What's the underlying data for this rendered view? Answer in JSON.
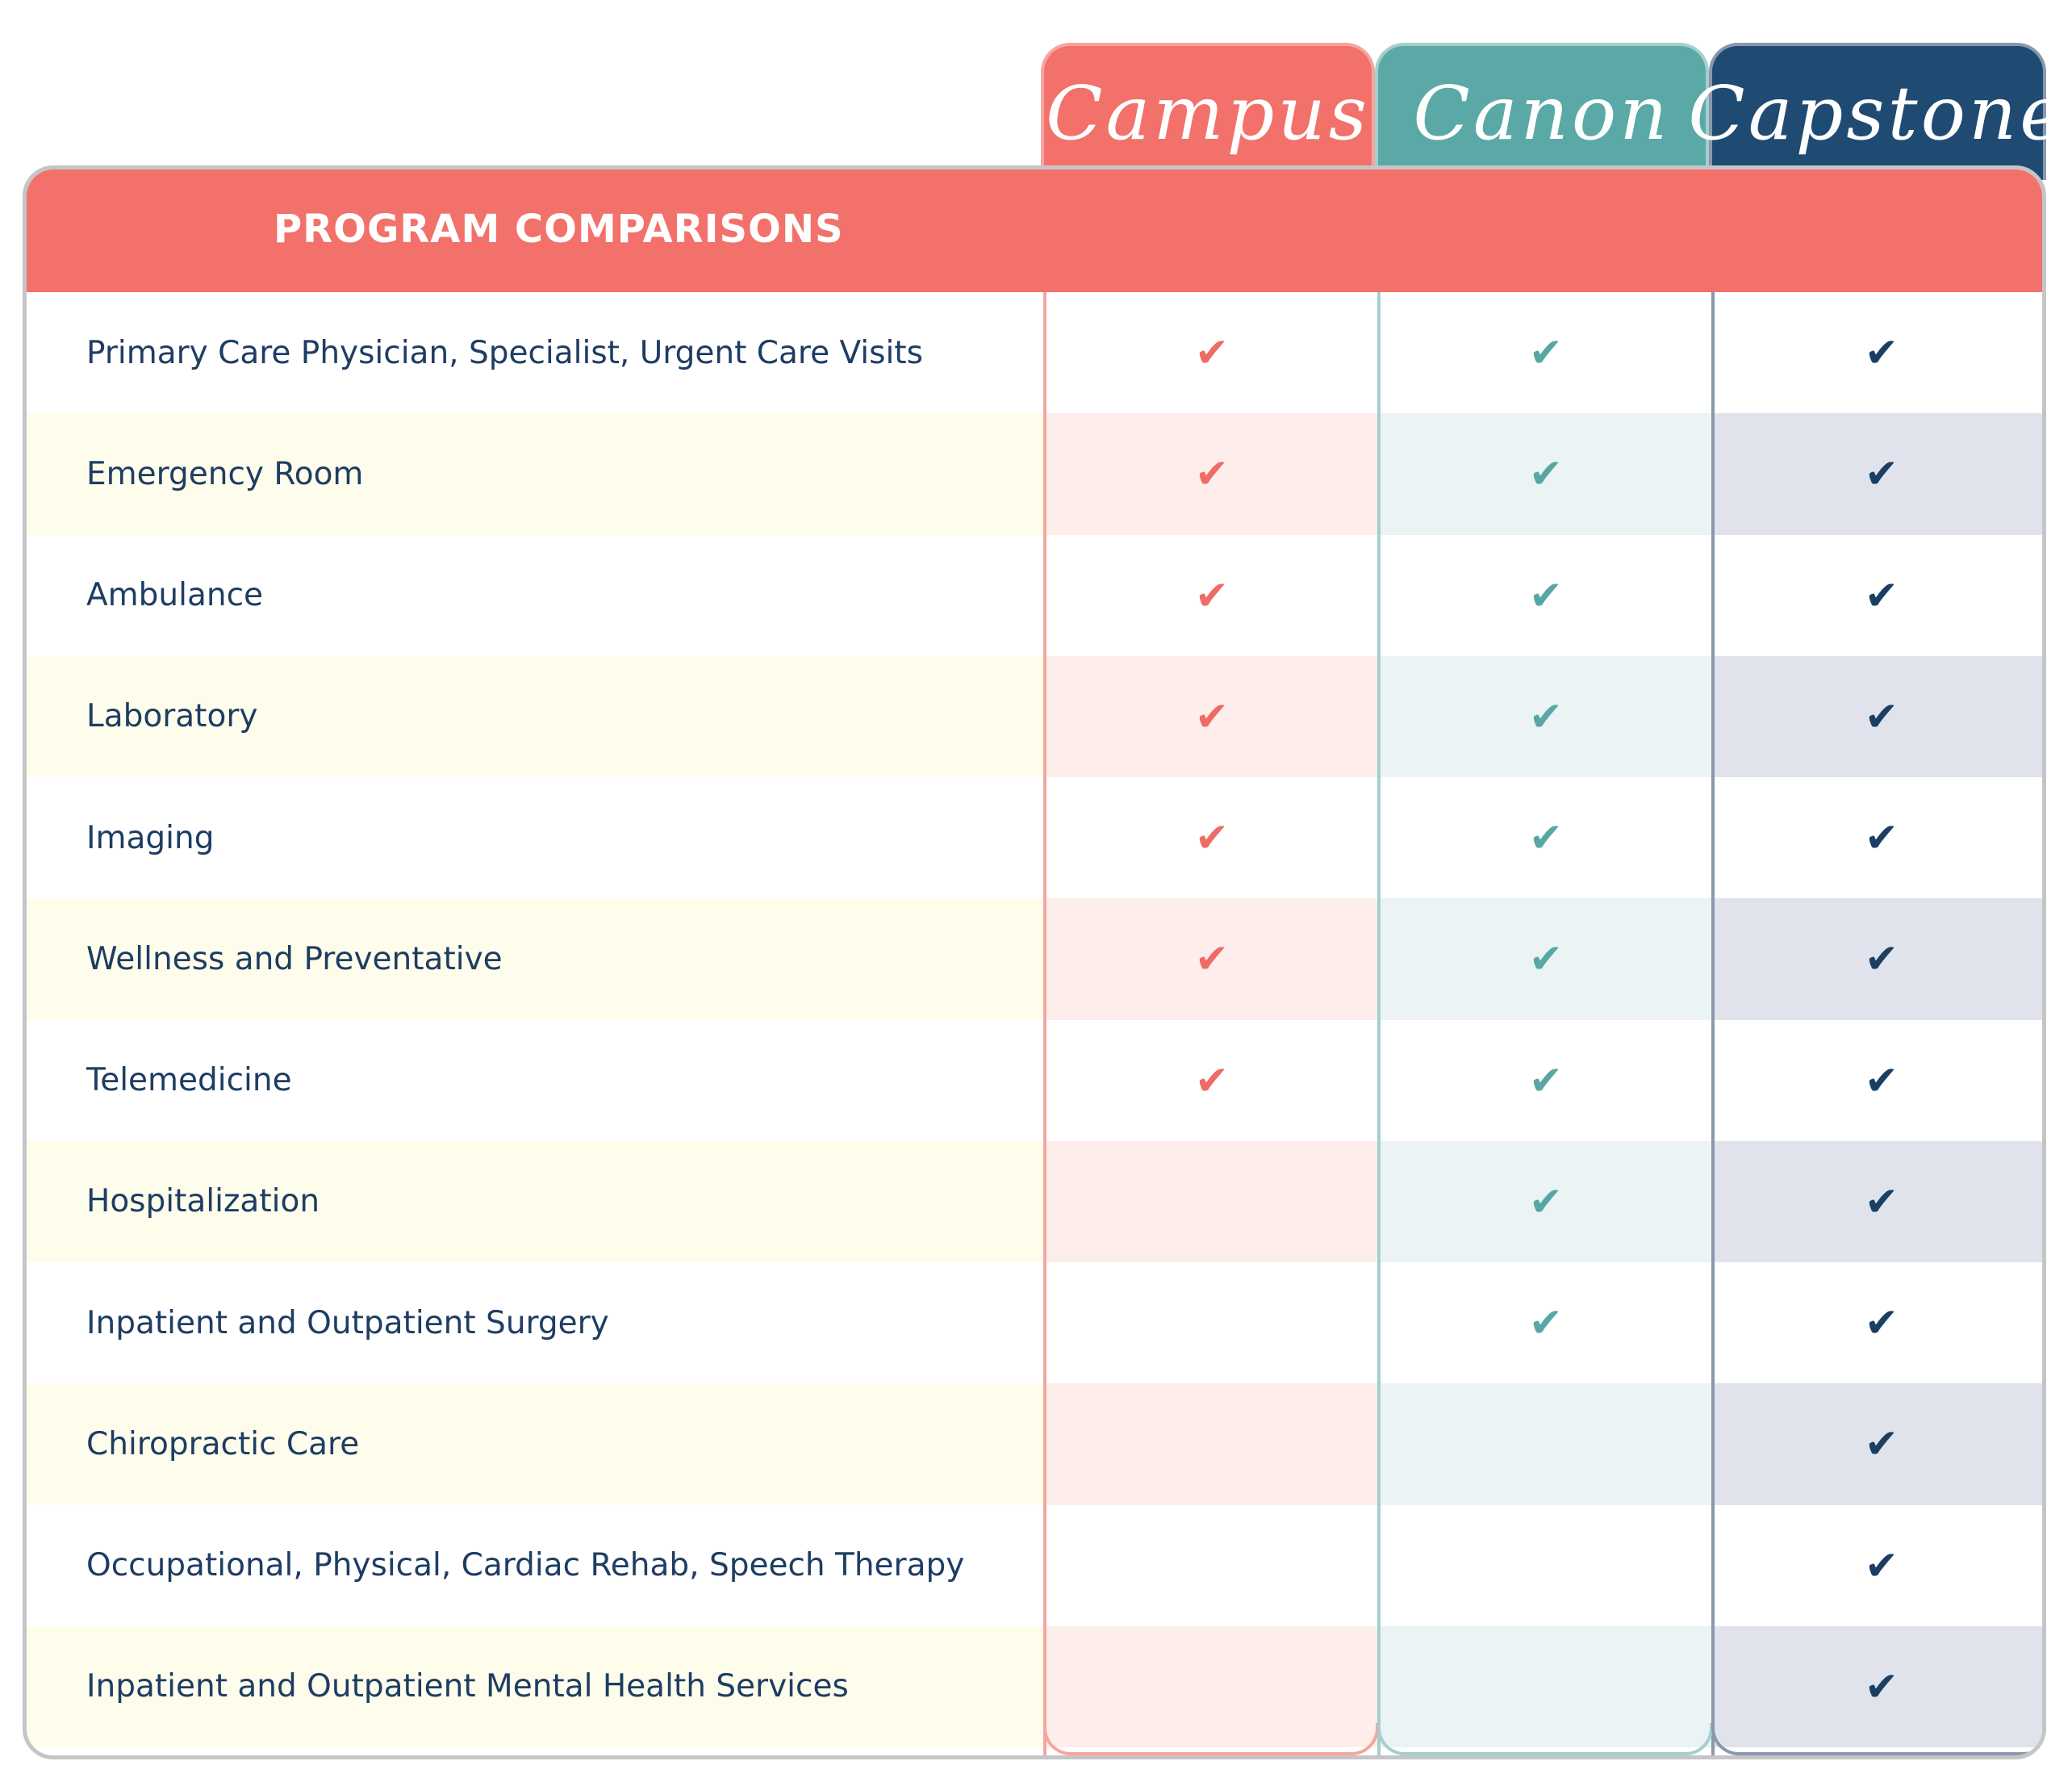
{
  "plans": [
    {
      "name": "Campus",
      "color": "#f2716a"
    },
    {
      "name": "Canon",
      "color": "#5aa9a7"
    },
    {
      "name": "Capstone",
      "color": "#1f4b73"
    }
  ],
  "header": {
    "title": "PROGRAM COMPARISONS"
  },
  "check_glyph": "✔",
  "rows": [
    {
      "label": "Primary Care Physician, Specialist, Urgent Care Visits",
      "campus": true,
      "canon": true,
      "capstone": true
    },
    {
      "label": "Emergency Room",
      "campus": true,
      "canon": true,
      "capstone": true
    },
    {
      "label": "Ambulance",
      "campus": true,
      "canon": true,
      "capstone": true
    },
    {
      "label": "Laboratory",
      "campus": true,
      "canon": true,
      "capstone": true
    },
    {
      "label": "Imaging",
      "campus": true,
      "canon": true,
      "capstone": true
    },
    {
      "label": "Wellness and Preventative",
      "campus": true,
      "canon": true,
      "capstone": true
    },
    {
      "label": "Telemedicine",
      "campus": true,
      "canon": true,
      "capstone": true
    },
    {
      "label": "Hospitalization",
      "campus": false,
      "canon": true,
      "capstone": true
    },
    {
      "label": "Inpatient and Outpatient Surgery",
      "campus": false,
      "canon": true,
      "capstone": true
    },
    {
      "label": "Chiropractic Care",
      "campus": false,
      "canon": false,
      "capstone": true
    },
    {
      "label": "Occupational, Physical, Cardiac Rehab, Speech Therapy",
      "campus": false,
      "canon": false,
      "capstone": true
    },
    {
      "label": "Inpatient and Outpatient Mental Health Services",
      "campus": false,
      "canon": false,
      "capstone": true
    }
  ]
}
